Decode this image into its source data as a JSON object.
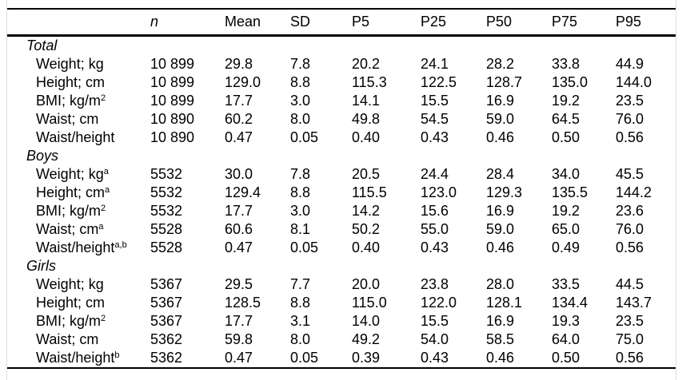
{
  "page": {
    "background": "#ffffff",
    "rule_color": "#000000",
    "edge_line_color": "#dddddd"
  },
  "table": {
    "columns": [
      {
        "key": "label",
        "label": "",
        "italic": false
      },
      {
        "key": "n",
        "label": "n",
        "italic": true
      },
      {
        "key": "mean",
        "label": "Mean",
        "italic": false
      },
      {
        "key": "sd",
        "label": "SD",
        "italic": false
      },
      {
        "key": "p5",
        "label": "P5",
        "italic": false
      },
      {
        "key": "p25",
        "label": "P25",
        "italic": false
      },
      {
        "key": "p50",
        "label": "P50",
        "italic": false
      },
      {
        "key": "p75",
        "label": "P75",
        "italic": false
      },
      {
        "key": "p95",
        "label": "P95",
        "italic": false
      }
    ],
    "sections": [
      {
        "group": "Total",
        "rows": [
          {
            "label": "Weight; kg",
            "sup": "",
            "values": [
              "10 899",
              "29.8",
              "7.8",
              "20.2",
              "24.1",
              "28.2",
              "33.8",
              "44.9"
            ]
          },
          {
            "label": "Height; cm",
            "sup": "",
            "values": [
              "10 899",
              "129.0",
              "8.8",
              "115.3",
              "122.5",
              "128.7",
              "135.0",
              "144.0"
            ]
          },
          {
            "label": "BMI; kg/m",
            "sup": "2",
            "values": [
              "10 899",
              "17.7",
              "3.0",
              "14.1",
              "15.5",
              "16.9",
              "19.2",
              "23.5"
            ]
          },
          {
            "label": "Waist; cm",
            "sup": "",
            "values": [
              "10 890",
              "60.2",
              "8.0",
              "49.8",
              "54.5",
              "59.0",
              "64.5",
              "76.0"
            ]
          },
          {
            "label": "Waist/height",
            "sup": "",
            "values": [
              "10 890",
              "0.47",
              "0.05",
              "0.40",
              "0.43",
              "0.46",
              "0.50",
              "0.56"
            ]
          }
        ]
      },
      {
        "group": "Boys",
        "rows": [
          {
            "label": "Weight; kg",
            "sup": "a",
            "values": [
              "5532",
              "30.0",
              "7.8",
              "20.5",
              "24.4",
              "28.4",
              "34.0",
              "45.5"
            ]
          },
          {
            "label": "Height; cm",
            "sup": "a",
            "values": [
              "5532",
              "129.4",
              "8.8",
              "115.5",
              "123.0",
              "129.3",
              "135.5",
              "144.2"
            ]
          },
          {
            "label": "BMI; kg/m",
            "sup": "2",
            "values": [
              "5532",
              "17.7",
              "3.0",
              "14.2",
              "15.6",
              "16.9",
              "19.2",
              "23.6"
            ]
          },
          {
            "label": "Waist; cm",
            "sup": "a",
            "values": [
              "5528",
              "60.6",
              "8.1",
              "50.2",
              "55.0",
              "59.0",
              "65.0",
              "76.0"
            ]
          },
          {
            "label": "Waist/height",
            "sup": "a,b",
            "values": [
              "5528",
              "0.47",
              "0.05",
              "0.40",
              "0.43",
              "0.46",
              "0.49",
              "0.56"
            ]
          }
        ]
      },
      {
        "group": "Girls",
        "rows": [
          {
            "label": "Weight; kg",
            "sup": "",
            "values": [
              "5367",
              "29.5",
              "7.7",
              "20.0",
              "23.8",
              "28.0",
              "33.5",
              "44.5"
            ]
          },
          {
            "label": "Height; cm",
            "sup": "",
            "values": [
              "5367",
              "128.5",
              "8.8",
              "115.0",
              "122.0",
              "128.1",
              "134.4",
              "143.7"
            ]
          },
          {
            "label": "BMI; kg/m",
            "sup": "2",
            "values": [
              "5367",
              "17.7",
              "3.1",
              "14.0",
              "15.5",
              "16.9",
              "19.3",
              "23.5"
            ]
          },
          {
            "label": "Waist; cm",
            "sup": "",
            "values": [
              "5362",
              "59.8",
              "8.0",
              "49.2",
              "54.0",
              "58.5",
              "64.0",
              "75.0"
            ]
          },
          {
            "label": "Waist/height",
            "sup": "b",
            "values": [
              "5362",
              "0.47",
              "0.05",
              "0.39",
              "0.43",
              "0.46",
              "0.50",
              "0.56"
            ]
          }
        ]
      }
    ]
  }
}
